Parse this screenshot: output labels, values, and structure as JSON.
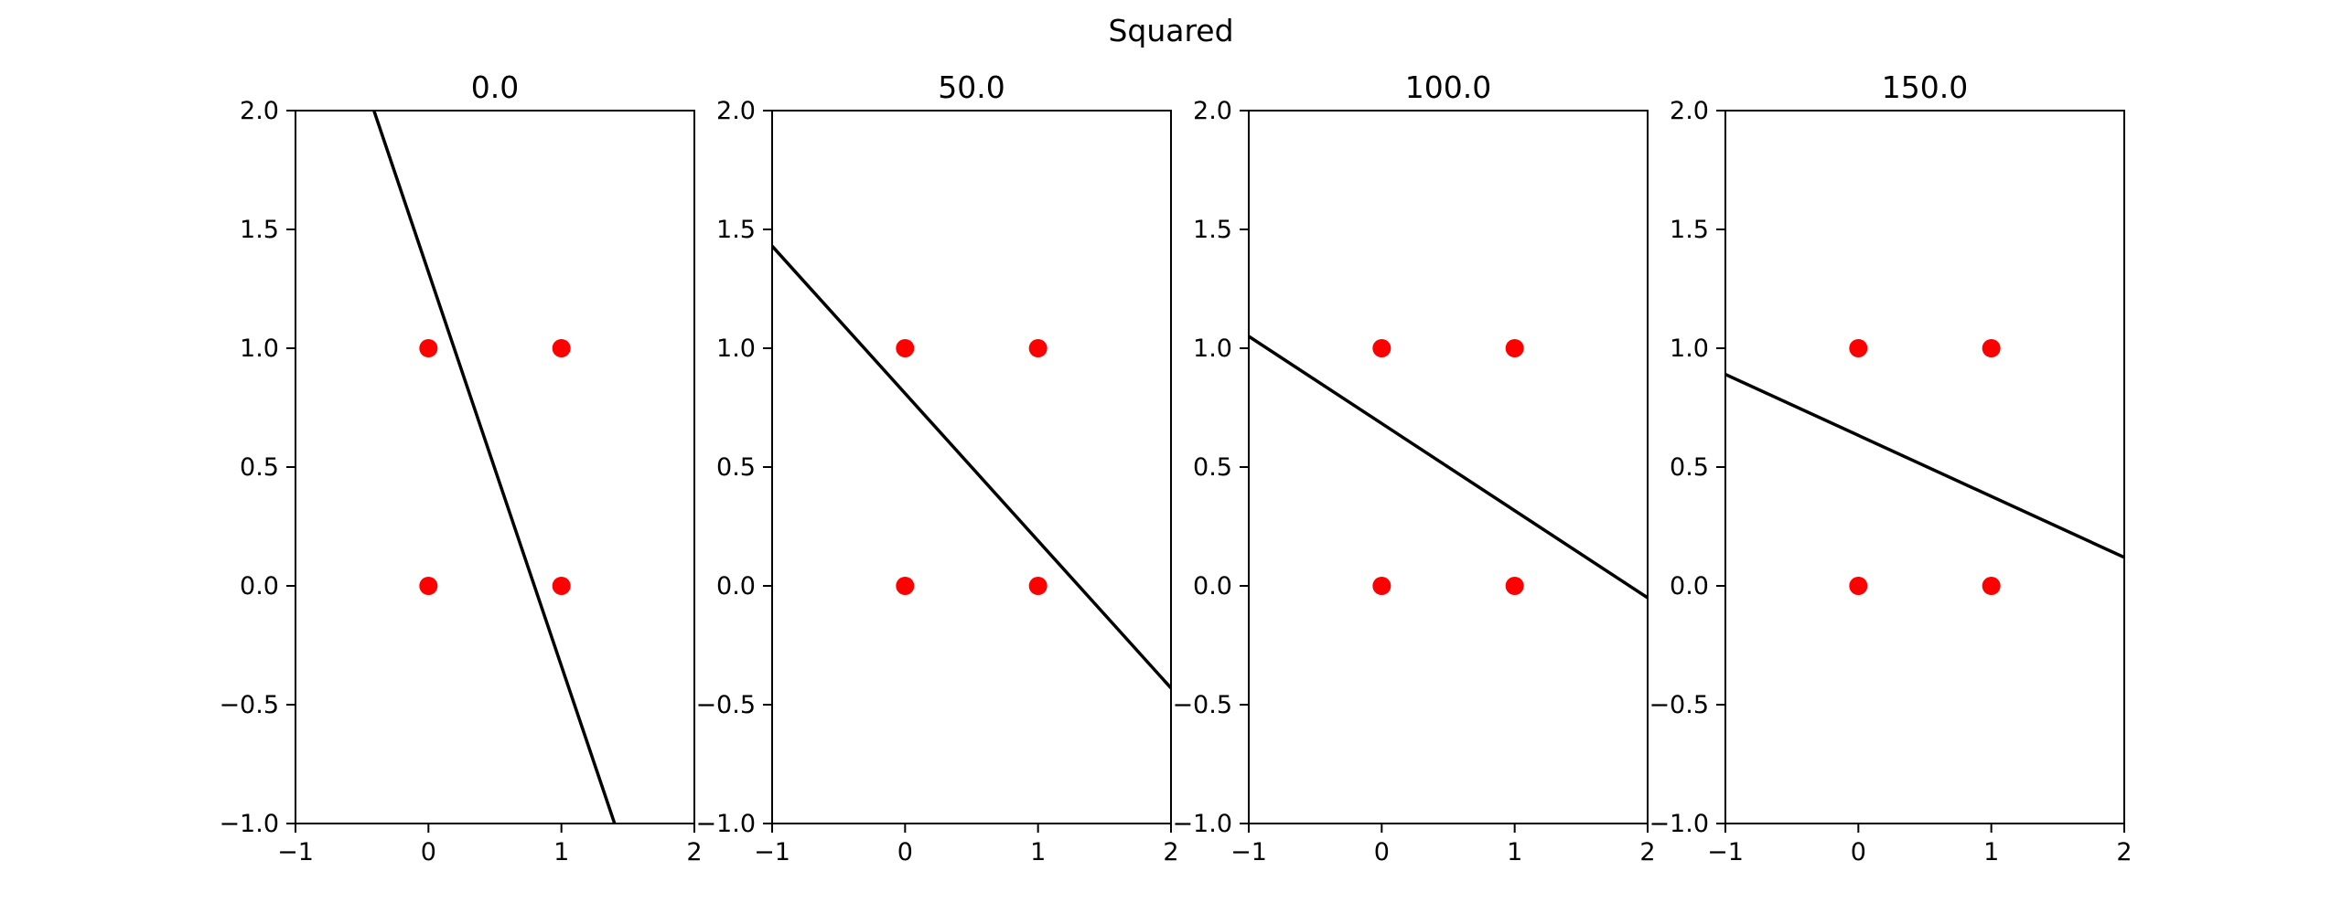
{
  "suptitle": "Squared",
  "chart_data": [
    {
      "type": "scatter",
      "title": "0.0",
      "xlim": [
        -1,
        2
      ],
      "ylim": [
        -1,
        2
      ],
      "xticks": [
        "−1",
        "0",
        "1",
        "2"
      ],
      "yticks": [
        "−1.0",
        "−0.5",
        "0.0",
        "0.5",
        "1.0",
        "1.5",
        "2.0"
      ],
      "xtick_values": [
        -1,
        0,
        1,
        2
      ],
      "ytick_values": [
        -1,
        -0.5,
        0,
        0.5,
        1,
        1.5,
        2
      ],
      "points": [
        [
          0,
          0
        ],
        [
          1,
          0
        ],
        [
          0,
          1
        ],
        [
          1,
          1
        ]
      ],
      "point_color": "#ff0000",
      "line": [
        [
          -0.41,
          2.0
        ],
        [
          1.4,
          -1.0
        ]
      ],
      "line_color": "#000000"
    },
    {
      "type": "scatter",
      "title": "50.0",
      "xlim": [
        -1,
        2
      ],
      "ylim": [
        -1,
        2
      ],
      "xticks": [
        "−1",
        "0",
        "1",
        "2"
      ],
      "yticks": [
        "−1.0",
        "−0.5",
        "0.0",
        "0.5",
        "1.0",
        "1.5",
        "2.0"
      ],
      "xtick_values": [
        -1,
        0,
        1,
        2
      ],
      "ytick_values": [
        -1,
        -0.5,
        0,
        0.5,
        1,
        1.5,
        2
      ],
      "points": [
        [
          0,
          0
        ],
        [
          1,
          0
        ],
        [
          0,
          1
        ],
        [
          1,
          1
        ]
      ],
      "point_color": "#ff0000",
      "line": [
        [
          -1.0,
          1.43
        ],
        [
          2.0,
          -0.43
        ]
      ],
      "line_color": "#000000"
    },
    {
      "type": "scatter",
      "title": "100.0",
      "xlim": [
        -1,
        2
      ],
      "ylim": [
        -1,
        2
      ],
      "xticks": [
        "−1",
        "0",
        "1",
        "2"
      ],
      "yticks": [
        "−1.0",
        "−0.5",
        "0.0",
        "0.5",
        "1.0",
        "1.5",
        "2.0"
      ],
      "xtick_values": [
        -1,
        0,
        1,
        2
      ],
      "ytick_values": [
        -1,
        -0.5,
        0,
        0.5,
        1,
        1.5,
        2
      ],
      "points": [
        [
          0,
          0
        ],
        [
          1,
          0
        ],
        [
          0,
          1
        ],
        [
          1,
          1
        ]
      ],
      "point_color": "#ff0000",
      "line": [
        [
          -1.0,
          1.05
        ],
        [
          2.0,
          -0.05
        ]
      ],
      "line_color": "#000000"
    },
    {
      "type": "scatter",
      "title": "150.0",
      "xlim": [
        -1,
        2
      ],
      "ylim": [
        -1,
        2
      ],
      "xticks": [
        "−1",
        "0",
        "1",
        "2"
      ],
      "yticks": [
        "−1.0",
        "−0.5",
        "0.0",
        "0.5",
        "1.0",
        "1.5",
        "2.0"
      ],
      "xtick_values": [
        -1,
        0,
        1,
        2
      ],
      "ytick_values": [
        -1,
        -0.5,
        0,
        0.5,
        1,
        1.5,
        2
      ],
      "points": [
        [
          0,
          0
        ],
        [
          1,
          0
        ],
        [
          0,
          1
        ],
        [
          1,
          1
        ]
      ],
      "point_color": "#ff0000",
      "line": [
        [
          -1.0,
          0.89
        ],
        [
          2.0,
          0.12
        ]
      ],
      "line_color": "#000000"
    }
  ]
}
